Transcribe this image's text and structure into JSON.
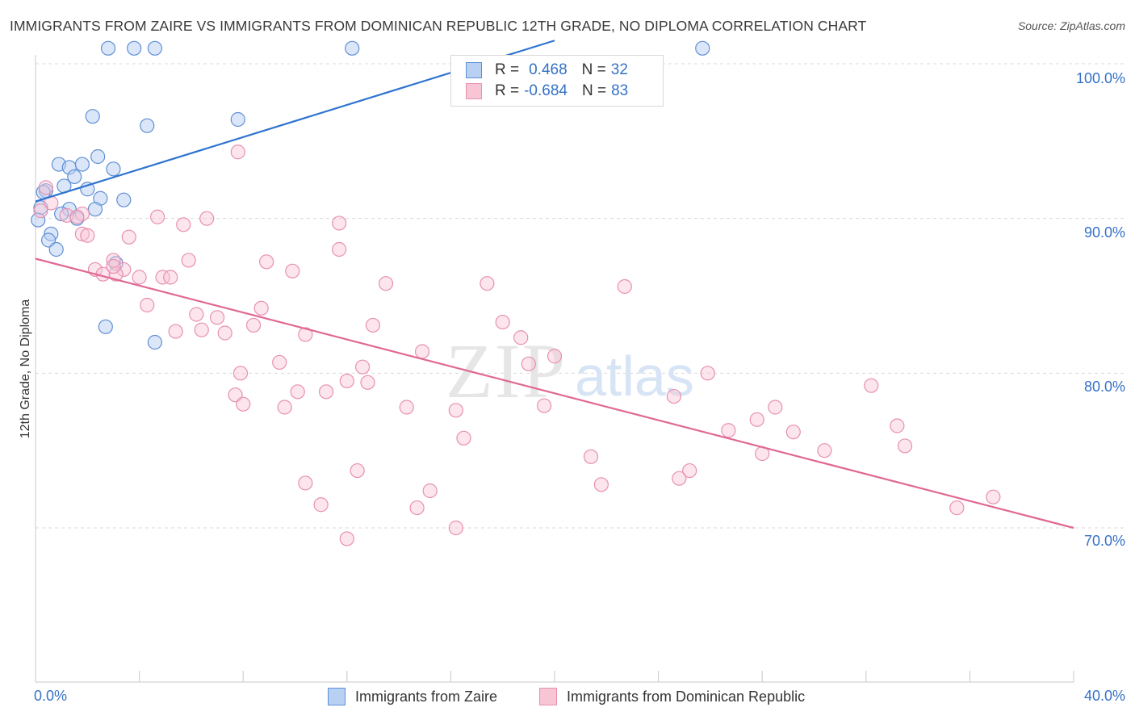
{
  "header": {
    "title": "IMMIGRANTS FROM ZAIRE VS IMMIGRANTS FROM DOMINICAN REPUBLIC 12TH GRADE, NO DIPLOMA CORRELATION CHART",
    "source": "Source: ZipAtlas.com"
  },
  "legend": {
    "zaire": {
      "r_label": "R =",
      "r_value": "0.468",
      "n_label": "N =",
      "n_value": "32"
    },
    "dominican": {
      "r_label": "R =",
      "r_value": "-0.684",
      "n_label": "N =",
      "n_value": "83"
    }
  },
  "bottom_legend": {
    "zaire": "Immigrants from Zaire",
    "dominican": "Immigrants from Dominican Republic"
  },
  "axes": {
    "ylabel": "12th Grade, No Diploma",
    "yticks": [
      "100.0%",
      "90.0%",
      "80.0%",
      "70.0%"
    ],
    "xticks": [
      "0.0%",
      "40.0%"
    ]
  },
  "colors": {
    "zaire_fill": "#b8d0f2",
    "zaire_stroke": "#5f8fd6",
    "zaire_line": "#2f74d0",
    "dom_fill": "#f8c5d5",
    "dom_stroke": "#e890b0",
    "dom_line": "#e06894",
    "tick_text": "#3572c6",
    "grid": "#d9d9d9"
  },
  "watermark": {
    "zip": "ZIP",
    "atlas": "atlas"
  },
  "chart_data": {
    "type": "scatter",
    "xlim": [
      0,
      40
    ],
    "ylim": [
      61,
      103
    ],
    "x_unit": "%",
    "y_unit": "%",
    "grid": true,
    "legend_position": "top-center",
    "series": [
      {
        "name": "Immigrants from Zaire",
        "r": 0.468,
        "n": 32,
        "trend": [
          [
            0.0,
            91.1
          ],
          [
            20.0,
            101.5
          ]
        ],
        "points": [
          [
            2.8,
            101.0
          ],
          [
            3.8,
            101.0
          ],
          [
            4.6,
            101.0
          ],
          [
            12.2,
            101.0
          ],
          [
            25.7,
            101.0
          ],
          [
            2.2,
            96.6
          ],
          [
            4.3,
            96.0
          ],
          [
            7.8,
            96.4
          ],
          [
            2.4,
            94.0
          ],
          [
            0.9,
            93.5
          ],
          [
            1.3,
            93.3
          ],
          [
            1.8,
            93.5
          ],
          [
            3.0,
            93.2
          ],
          [
            1.5,
            92.7
          ],
          [
            1.1,
            92.1
          ],
          [
            2.0,
            91.9
          ],
          [
            3.4,
            91.2
          ],
          [
            0.4,
            91.8
          ],
          [
            2.5,
            91.3
          ],
          [
            1.3,
            90.6
          ],
          [
            2.3,
            90.6
          ],
          [
            1.0,
            90.3
          ],
          [
            1.6,
            90.0
          ],
          [
            0.2,
            90.7
          ],
          [
            0.1,
            89.9
          ],
          [
            0.6,
            89.0
          ],
          [
            0.5,
            88.6
          ],
          [
            0.8,
            88.0
          ],
          [
            3.1,
            87.1
          ],
          [
            2.7,
            83.0
          ],
          [
            4.6,
            82.0
          ],
          [
            0.3,
            91.7
          ]
        ]
      },
      {
        "name": "Immigrants from Dominican Republic",
        "r": -0.684,
        "n": 83,
        "trend": [
          [
            0.0,
            87.4
          ],
          [
            40.0,
            70.0
          ]
        ],
        "points": [
          [
            0.4,
            92.0
          ],
          [
            0.6,
            91.0
          ],
          [
            0.2,
            90.5
          ],
          [
            1.8,
            90.3
          ],
          [
            1.2,
            90.2
          ],
          [
            1.6,
            90.1
          ],
          [
            7.8,
            94.3
          ],
          [
            4.7,
            90.1
          ],
          [
            5.7,
            89.6
          ],
          [
            6.6,
            90.0
          ],
          [
            11.7,
            89.7
          ],
          [
            1.8,
            89.0
          ],
          [
            2.0,
            88.9
          ],
          [
            3.6,
            88.8
          ],
          [
            11.7,
            88.0
          ],
          [
            3.0,
            87.3
          ],
          [
            5.9,
            87.3
          ],
          [
            8.9,
            87.2
          ],
          [
            2.3,
            86.7
          ],
          [
            3.4,
            86.7
          ],
          [
            2.6,
            86.4
          ],
          [
            4.0,
            86.2
          ],
          [
            4.9,
            86.2
          ],
          [
            5.2,
            86.2
          ],
          [
            3.1,
            86.4
          ],
          [
            9.9,
            86.6
          ],
          [
            13.5,
            85.8
          ],
          [
            17.4,
            85.8
          ],
          [
            22.7,
            85.6
          ],
          [
            4.3,
            84.4
          ],
          [
            8.7,
            84.2
          ],
          [
            6.2,
            83.8
          ],
          [
            7.0,
            83.6
          ],
          [
            8.4,
            83.1
          ],
          [
            13.0,
            83.1
          ],
          [
            18.0,
            83.3
          ],
          [
            5.4,
            82.7
          ],
          [
            6.4,
            82.8
          ],
          [
            7.3,
            82.6
          ],
          [
            10.4,
            82.5
          ],
          [
            18.7,
            82.3
          ],
          [
            14.9,
            81.4
          ],
          [
            20.0,
            81.1
          ],
          [
            9.4,
            80.7
          ],
          [
            19.0,
            80.6
          ],
          [
            12.6,
            80.4
          ],
          [
            12.0,
            79.5
          ],
          [
            12.8,
            79.4
          ],
          [
            7.9,
            80.0
          ],
          [
            25.9,
            80.0
          ],
          [
            10.1,
            78.8
          ],
          [
            11.2,
            78.8
          ],
          [
            7.7,
            78.6
          ],
          [
            8.0,
            78.0
          ],
          [
            24.6,
            78.5
          ],
          [
            9.6,
            77.8
          ],
          [
            14.3,
            77.8
          ],
          [
            16.2,
            77.6
          ],
          [
            19.6,
            77.9
          ],
          [
            28.5,
            77.8
          ],
          [
            27.8,
            77.0
          ],
          [
            29.2,
            76.2
          ],
          [
            26.7,
            76.3
          ],
          [
            16.5,
            75.8
          ],
          [
            33.2,
            76.6
          ],
          [
            33.5,
            75.3
          ],
          [
            28.0,
            74.8
          ],
          [
            30.4,
            75.0
          ],
          [
            32.2,
            79.2
          ],
          [
            21.4,
            74.6
          ],
          [
            12.4,
            73.7
          ],
          [
            25.2,
            73.7
          ],
          [
            10.4,
            72.9
          ],
          [
            21.8,
            72.8
          ],
          [
            24.8,
            73.2
          ],
          [
            15.2,
            72.4
          ],
          [
            11.0,
            71.5
          ],
          [
            14.7,
            71.3
          ],
          [
            36.9,
            72.0
          ],
          [
            35.5,
            71.3
          ],
          [
            16.2,
            70.0
          ],
          [
            12.0,
            69.3
          ],
          [
            3.0,
            86.9
          ]
        ]
      }
    ]
  }
}
